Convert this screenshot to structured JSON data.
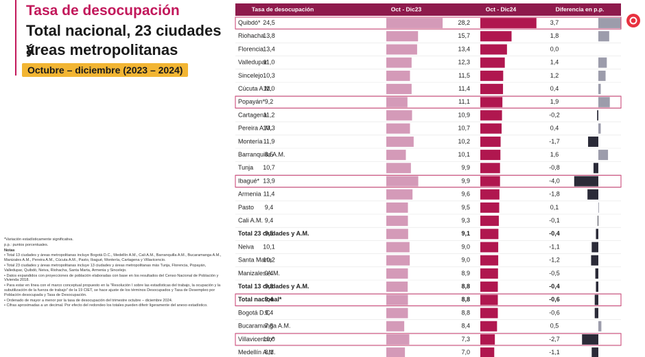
{
  "header": {
    "kicker": "Tasa de desocupación",
    "title_1": "Total nacional, 23 ciudades y",
    "title_2": "áreas metropolitanas",
    "period": "Octubre – diciembre (2023 – 2024)"
  },
  "notes": [
    "*Variación estadísticamente significativa.",
    "p.p.: puntos porcentuales.",
    "Notas",
    "• Total 13 ciudades y áreas metropolitanas incluye Bogotá D.C., Medellín A.M., Cali A.M., Barranquilla A.M., Bucaramanga A.M., Manizales A.M., Pereira A.M., Cúcuta A.M., Pasto, Ibagué, Montería, Cartagena y Villavicencio.",
    "• Total 23 ciudades y áreas metropolitanas incluye 13 ciudades y áreas metropolitanas más Tunja, Florencia, Popayán, Valledupar, Quibdó, Neiva, Riohacha, Santa Marta, Armenia y Sincelejo.",
    "• Datos expandidos con proyecciones de población elaboradas con base en los resultados del Censo Nacional de Población y Vivienda 2018.",
    "• Para estar en línea con el marco conceptual propuesto en la \"Resolución I sobre las estadísticas del trabajo, la ocupación y la subutilización de la fuerza de trabajo\" de la 19 CIET, se hace ajuste de los términos Desocupados y Tasa de Desempleo por Población desocupada y Tasa de Desocupación.",
    "• Ordenado de mayor a menor por la tasa de desocupación del trimestre octubre – diciembre 2024.",
    "• Cifras aproximadas a un decimal. Por efecto del redondeo los totales pueden diferir ligeramente del anexo estadístico."
  ],
  "table": {
    "columns": [
      "Tasa de desocupación",
      "Oct - Dic23",
      "Oct - Dic24",
      "Diferencia en p.p."
    ],
    "colors": {
      "d23": "#d49ab8",
      "d24": "#b0174f",
      "diff_pos": "#9c9cab",
      "diff_neg": "#2b2b38"
    },
    "rows": [
      {
        "name": "Quibdó*",
        "d23": {
          "value": 24.5,
          "label": "24,5"
        },
        "d24": {
          "value": 28.2,
          "label": "28,2"
        },
        "diff": {
          "value": 3.7,
          "label": "3,7"
        },
        "highlight": true
      },
      {
        "name": "Riohacha",
        "d23": {
          "value": 13.8,
          "label": "13,8"
        },
        "d24": {
          "value": 15.7,
          "label": "15,7"
        },
        "diff": {
          "value": 1.8,
          "label": "1,8"
        }
      },
      {
        "name": "Florencia",
        "d23": {
          "value": 13.4,
          "label": "13,4"
        },
        "d24": {
          "value": 13.4,
          "label": "13,4"
        },
        "diff": {
          "value": 0.0,
          "label": "0,0"
        }
      },
      {
        "name": "Valledupar",
        "d23": {
          "value": 11.0,
          "label": "11,0"
        },
        "d24": {
          "value": 12.3,
          "label": "12,3"
        },
        "diff": {
          "value": 1.4,
          "label": "1,4"
        }
      },
      {
        "name": "Sincelejo",
        "d23": {
          "value": 10.3,
          "label": "10,3"
        },
        "d24": {
          "value": 11.5,
          "label": "11,5"
        },
        "diff": {
          "value": 1.2,
          "label": "1,2"
        }
      },
      {
        "name": "Cúcuta A.M.",
        "d23": {
          "value": 11.0,
          "label": "11,0"
        },
        "d24": {
          "value": 11.4,
          "label": "11,4"
        },
        "diff": {
          "value": 0.4,
          "label": "0,4"
        }
      },
      {
        "name": "Popayán*",
        "d23": {
          "value": 9.2,
          "label": "9,2"
        },
        "d24": {
          "value": 11.1,
          "label": "11,1"
        },
        "diff": {
          "value": 1.9,
          "label": "1,9"
        },
        "highlight": true
      },
      {
        "name": "Cartagena",
        "d23": {
          "value": 11.2,
          "label": "11,2"
        },
        "d24": {
          "value": 10.9,
          "label": "10,9"
        },
        "diff": {
          "value": -0.2,
          "label": "-0,2"
        }
      },
      {
        "name": "Pereira A.M.",
        "d23": {
          "value": 10.3,
          "label": "10,3"
        },
        "d24": {
          "value": 10.7,
          "label": "10,7"
        },
        "diff": {
          "value": 0.4,
          "label": "0,4"
        }
      },
      {
        "name": "Montería",
        "d23": {
          "value": 11.9,
          "label": "11,9"
        },
        "d24": {
          "value": 10.2,
          "label": "10,2"
        },
        "diff": {
          "value": -1.7,
          "label": "-1,7"
        }
      },
      {
        "name": "Barranquilla A.M.",
        "d23": {
          "value": 8.5,
          "label": "8,5"
        },
        "d24": {
          "value": 10.1,
          "label": "10,1"
        },
        "diff": {
          "value": 1.6,
          "label": "1,6"
        }
      },
      {
        "name": "Tunja",
        "d23": {
          "value": 10.7,
          "label": "10,7"
        },
        "d24": {
          "value": 9.9,
          "label": "9,9"
        },
        "diff": {
          "value": -0.8,
          "label": "-0,8"
        }
      },
      {
        "name": "Ibagué*",
        "d23": {
          "value": 13.9,
          "label": "13,9"
        },
        "d24": {
          "value": 9.9,
          "label": "9,9"
        },
        "diff": {
          "value": -4.0,
          "label": "-4,0"
        },
        "highlight": true
      },
      {
        "name": "Armenia",
        "d23": {
          "value": 11.4,
          "label": "11,4"
        },
        "d24": {
          "value": 9.6,
          "label": "9,6"
        },
        "diff": {
          "value": -1.8,
          "label": "-1,8"
        }
      },
      {
        "name": "Pasto",
        "d23": {
          "value": 9.4,
          "label": "9,4"
        },
        "d24": {
          "value": 9.5,
          "label": "9,5"
        },
        "diff": {
          "value": 0.1,
          "label": "0,1"
        }
      },
      {
        "name": "Cali A.M.",
        "d23": {
          "value": 9.4,
          "label": "9,4"
        },
        "d24": {
          "value": 9.3,
          "label": "9,3"
        },
        "diff": {
          "value": -0.1,
          "label": "-0,1"
        }
      },
      {
        "name": "Total 23 ciudades y A.M.",
        "d23": {
          "value": 9.5,
          "label": "9,5"
        },
        "d24": {
          "value": 9.1,
          "label": "9,1"
        },
        "diff": {
          "value": -0.4,
          "label": "-0,4"
        },
        "bold": true
      },
      {
        "name": "Neiva",
        "d23": {
          "value": 10.1,
          "label": "10,1"
        },
        "d24": {
          "value": 9.0,
          "label": "9,0"
        },
        "diff": {
          "value": -1.1,
          "label": "-1,1"
        }
      },
      {
        "name": "Santa Marta",
        "d23": {
          "value": 10.2,
          "label": "10,2"
        },
        "d24": {
          "value": 9.0,
          "label": "9,0"
        },
        "diff": {
          "value": -1.2,
          "label": "-1,2"
        }
      },
      {
        "name": "Manizales A.M.",
        "d23": {
          "value": 9.4,
          "label": "9,4"
        },
        "d24": {
          "value": 8.9,
          "label": "8,9"
        },
        "diff": {
          "value": -0.5,
          "label": "-0,5"
        }
      },
      {
        "name": "Total 13 ciudades y A.M.",
        "d23": {
          "value": 9.3,
          "label": "9,3"
        },
        "d24": {
          "value": 8.8,
          "label": "8,8"
        },
        "diff": {
          "value": -0.4,
          "label": "-0,4"
        },
        "bold": true
      },
      {
        "name": "Total nacional*",
        "d23": {
          "value": 9.4,
          "label": "9,4"
        },
        "d24": {
          "value": 8.8,
          "label": "8,8"
        },
        "diff": {
          "value": -0.6,
          "label": "-0,6"
        },
        "bold": true,
        "highlight": true
      },
      {
        "name": "Bogotá D.C",
        "d23": {
          "value": 9.4,
          "label": "9,4"
        },
        "d24": {
          "value": 8.8,
          "label": "8,8"
        },
        "diff": {
          "value": -0.6,
          "label": "-0,6"
        }
      },
      {
        "name": "Bucaramanga A.M.",
        "d23": {
          "value": 7.8,
          "label": "7,8"
        },
        "d24": {
          "value": 8.4,
          "label": "8,4"
        },
        "diff": {
          "value": 0.5,
          "label": "0,5"
        }
      },
      {
        "name": "Villavicencio*",
        "d23": {
          "value": 10.0,
          "label": "10,0"
        },
        "d24": {
          "value": 7.3,
          "label": "7,3"
        },
        "diff": {
          "value": -2.7,
          "label": "-2,7"
        },
        "highlight": true
      },
      {
        "name": "Medellín A.M.",
        "d23": {
          "value": 8.1,
          "label": "8,1"
        },
        "d24": {
          "value": 7.0,
          "label": "7,0"
        },
        "diff": {
          "value": -1.1,
          "label": "-1,1"
        }
      }
    ]
  }
}
